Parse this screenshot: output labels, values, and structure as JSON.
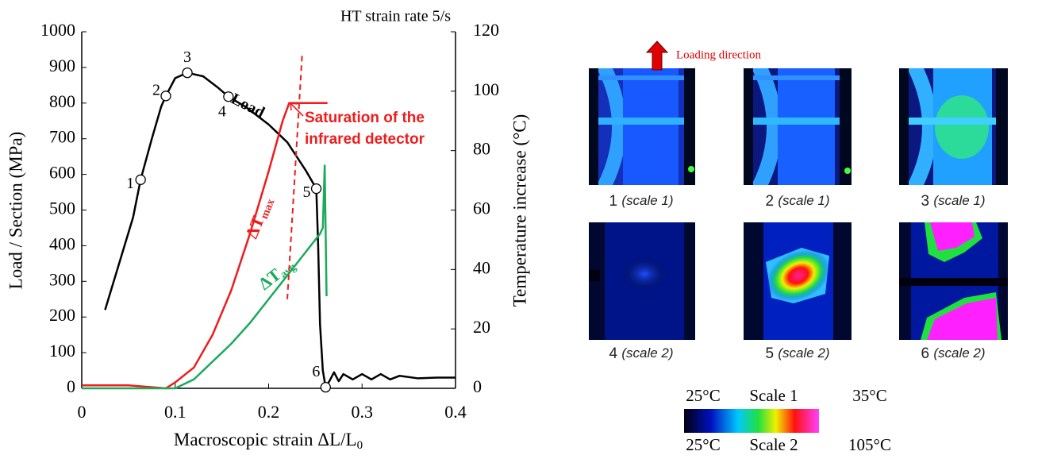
{
  "chart_data": {
    "type": "line",
    "title": "HT strain rate 5/s",
    "x_label": {
      "text": "Macroscopic strain ΔL/L",
      "sub": "0"
    },
    "y_label": "Load / Section (MPa)",
    "y2_label": "Temperature increase (°C)",
    "xlim": [
      0,
      0.4
    ],
    "xticks": [
      0,
      0.1,
      0.2,
      0.3,
      0.4
    ],
    "ylim": [
      0,
      1000
    ],
    "yticks": [
      0,
      100,
      200,
      300,
      400,
      500,
      600,
      700,
      800,
      900,
      1000
    ],
    "y2lim": [
      0,
      120
    ],
    "y2ticks": [
      0,
      20,
      40,
      60,
      80,
      100,
      120
    ],
    "series": [
      {
        "name": {
          "text": "Load",
          "sub": ""
        },
        "color": "#000000",
        "x": [
          0.025,
          0.04,
          0.055,
          0.063,
          0.075,
          0.085,
          0.09,
          0.1,
          0.113,
          0.13,
          0.145,
          0.157,
          0.175,
          0.2,
          0.22,
          0.24,
          0.251,
          0.253,
          0.255,
          0.258,
          0.261,
          0.265,
          0.27,
          0.275,
          0.28,
          0.29,
          0.3,
          0.31,
          0.32,
          0.33,
          0.34,
          0.36,
          0.38,
          0.4
        ],
        "values": [
          220,
          350,
          480,
          585,
          700,
          790,
          820,
          870,
          885,
          875,
          845,
          818,
          790,
          740,
          690,
          610,
          560,
          400,
          180,
          50,
          3,
          20,
          45,
          20,
          40,
          25,
          40,
          25,
          40,
          25,
          35,
          28,
          30,
          30
        ]
      },
      {
        "name": {
          "text": "ΔT",
          "sub": "max"
        },
        "color": "#ee1c1c",
        "axis": "y2",
        "x": [
          0,
          0.05,
          0.09,
          0.1,
          0.12,
          0.14,
          0.16,
          0.18,
          0.2,
          0.215,
          0.222,
          0.23,
          0.263
        ],
        "values": [
          1,
          1,
          0,
          2,
          7,
          18,
          33,
          52,
          73,
          90,
          96,
          96,
          96
        ]
      },
      {
        "name": {
          "text": "ΔT",
          "sub": "avg"
        },
        "color": "#1aaa5a",
        "axis": "y2",
        "x": [
          0,
          0.1,
          0.12,
          0.14,
          0.16,
          0.18,
          0.2,
          0.22,
          0.24,
          0.255,
          0.258,
          0.26,
          0.262
        ],
        "values": [
          0,
          0,
          3,
          9,
          15,
          22,
          30,
          38,
          46,
          52,
          54,
          75,
          31
        ]
      }
    ],
    "markers": {
      "labels": [
        "1",
        "2",
        "3",
        "4",
        "5",
        "6"
      ],
      "x": [
        0.063,
        0.09,
        0.113,
        0.157,
        0.251,
        0.261
      ],
      "values": [
        585,
        820,
        885,
        818,
        560,
        3
      ]
    },
    "saturation_line": {
      "x": [
        0.22,
        0.236
      ],
      "values": [
        30,
        113
      ],
      "color": "#ee1c1c"
    },
    "annotation": [
      "Saturation of the",
      "infrared detector"
    ]
  },
  "figure": {
    "loading_direction": "Loading direction",
    "captions": [
      {
        "num": "1",
        "scale": "(scale 1)"
      },
      {
        "num": "2",
        "scale": "(scale 1)"
      },
      {
        "num": "3",
        "scale": "(scale 1)"
      },
      {
        "num": "4",
        "scale": "(scale 2)"
      },
      {
        "num": "5",
        "scale": "(scale 2)"
      },
      {
        "num": "6",
        "scale": "(scale 2)"
      }
    ],
    "colorbar": {
      "top": [
        "25°C",
        "Scale 1",
        "35°C"
      ],
      "bottom": [
        "25°C",
        "Scale 2",
        "105°C"
      ]
    }
  }
}
